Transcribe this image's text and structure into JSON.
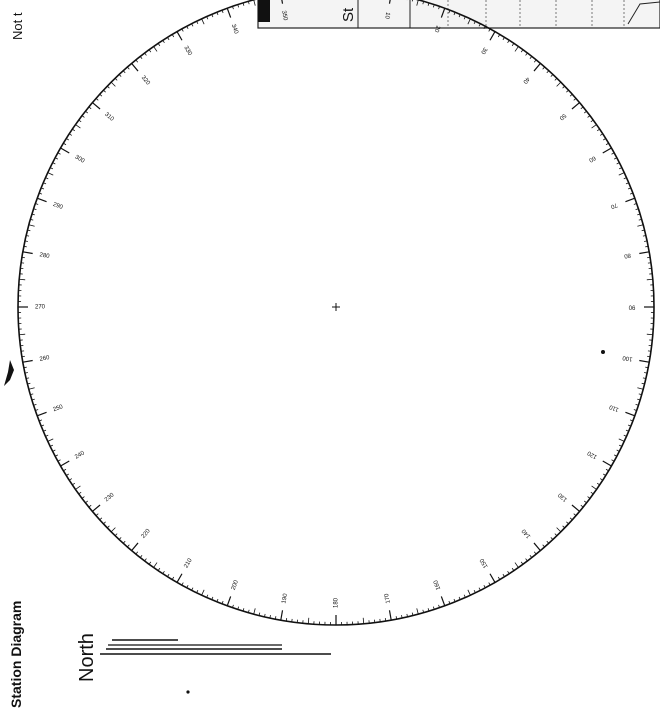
{
  "document": {
    "left_title": "Not t",
    "station_diagram_label": "Station Diagram",
    "north_label": "North",
    "station_box_label": "St"
  },
  "compass": {
    "tick_labels": [
      "10",
      "20",
      "30",
      "40",
      "50",
      "60",
      "70",
      "80",
      "90",
      "100",
      "110",
      "120",
      "130",
      "140",
      "150",
      "160",
      "170",
      "180",
      "190",
      "200",
      "210",
      "220",
      "230",
      "240",
      "250",
      "260",
      "270",
      "280",
      "290",
      "300",
      "310",
      "320",
      "330",
      "340",
      "350"
    ],
    "colors": {
      "ink": "#111111",
      "paper": "#ffffff"
    }
  }
}
